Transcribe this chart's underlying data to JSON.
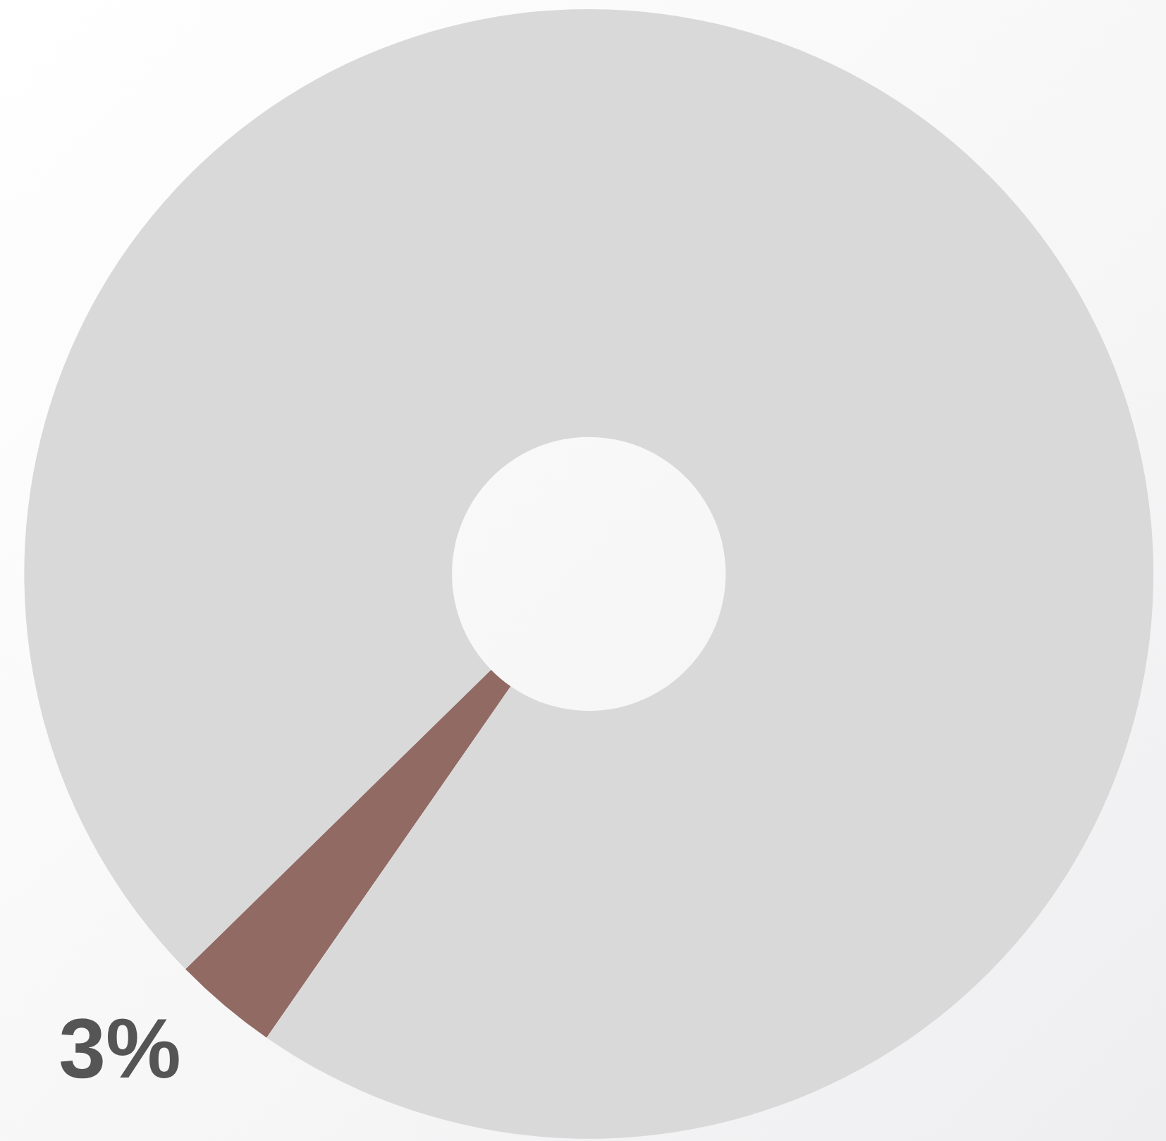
{
  "chart_data": {
    "type": "donut",
    "categories": [
      null,
      null
    ],
    "values": [
      3,
      97
    ],
    "colors": [
      "#926a64",
      "#d9d9d9"
    ],
    "value_labels": [
      "3%",
      null
    ]
  }
}
